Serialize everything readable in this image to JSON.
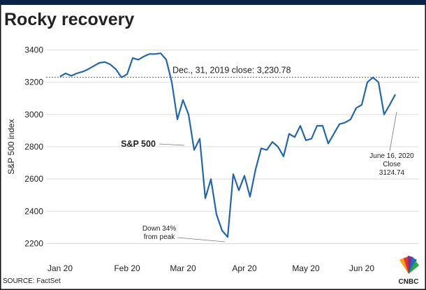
{
  "chart_data": {
    "type": "line",
    "title": "Rocky recovery",
    "ylabel": "S&P 500 index",
    "source": "SOURCE: FactSet",
    "categories": [
      "Jan 20",
      null,
      null,
      null,
      null,
      null,
      null,
      null,
      null,
      null,
      null,
      null,
      "Feb 20",
      null,
      null,
      null,
      null,
      null,
      null,
      null,
      null,
      null,
      "Mar 20",
      null,
      null,
      null,
      null,
      null,
      null,
      null,
      null,
      null,
      null,
      "Apr 20",
      null,
      null,
      null,
      null,
      null,
      null,
      null,
      null,
      null,
      null,
      "May 20",
      null,
      null,
      null,
      null,
      null,
      null,
      null,
      null,
      null,
      "Jun 20",
      null,
      null,
      null,
      null,
      null,
      null
    ],
    "series": [
      {
        "name": "S&P 500",
        "color": "#2566a8",
        "values": [
          3235,
          3255,
          3240,
          3255,
          3265,
          3280,
          3300,
          3320,
          3325,
          3310,
          3280,
          3230,
          3250,
          3350,
          3340,
          3360,
          3375,
          3375,
          3380,
          3340,
          3200,
          2970,
          3090,
          3000,
          2780,
          2850,
          2480,
          2600,
          2380,
          2280,
          2240,
          2630,
          2530,
          2620,
          2490,
          2660,
          2790,
          2780,
          2830,
          2800,
          2740,
          2880,
          2860,
          2930,
          2840,
          2850,
          2930,
          2930,
          2820,
          2880,
          2940,
          2950,
          2970,
          3040,
          3060,
          3200,
          3230,
          3200,
          3000,
          3060,
          3124.74
        ]
      }
    ],
    "ylim": [
      2150,
      3450
    ],
    "yticks": [
      2200,
      2400,
      2600,
      2800,
      3000,
      3200,
      3400
    ],
    "grid": true,
    "reference_line": {
      "value": 3230.78,
      "label": "Dec., 31, 2019 close:  3,230.78"
    },
    "annotations": [
      {
        "lines": [
          "S&P 500"
        ]
      },
      {
        "lines": [
          "Down 34%",
          "from peak"
        ]
      },
      {
        "lines": [
          "June 16, 2020",
          "Close",
          "3124.74"
        ]
      }
    ]
  }
}
